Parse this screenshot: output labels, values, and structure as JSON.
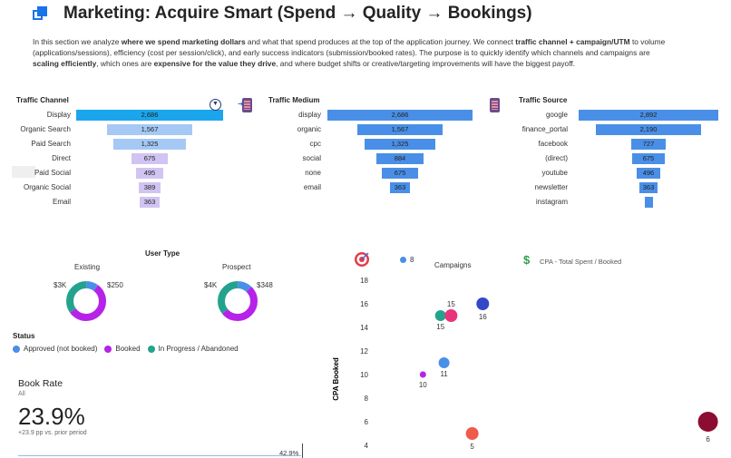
{
  "page": {
    "title": "Marketing: Acquire Smart (Spend → Quality → Bookings)",
    "intro": [
      {
        "t": "In this section we analyze ",
        "b": false
      },
      {
        "t": "where we spend marketing dollars",
        "b": true
      },
      {
        "t": " and what that spend produces at the top of the application journey. We connect ",
        "b": false
      },
      {
        "t": "traffic channel + campaign/UTM",
        "b": true
      },
      {
        "t": " to volume (applications/sessions), efficiency (cost per session/click), and early success indicators (submission/booked rates). The purpose is to quickly identify which channels and campaigns are ",
        "b": false
      },
      {
        "t": "scaling efficiently",
        "b": true
      },
      {
        "t": ", which ones are ",
        "b": false
      },
      {
        "t": "expensive for the value they drive",
        "b": true
      },
      {
        "t": ", and where budget shifts or creative/targeting improvements will have the biggest payoff.",
        "b": false
      }
    ]
  },
  "colors": {
    "channel_highlight": "#1aa5ec",
    "channel_bars": "#a5c8f5",
    "channel_bars_light": "#d1c4f2",
    "medium_bars": "#4a8fe7",
    "source_bars": "#4a8fe7",
    "approved": "#4a8fe7",
    "booked": "#b622e8",
    "in_progress": "#23a38d",
    "scatter_large": "#8c0d32"
  },
  "funnels": {
    "channel": {
      "title": "Traffic Channel",
      "rows": [
        {
          "label": "Display",
          "value": 2686,
          "display": "2,686",
          "color": "#1aa5ec"
        },
        {
          "label": "Organic Search",
          "value": 1567,
          "display": "1,567",
          "color": "#a5c8f5"
        },
        {
          "label": "Paid Search",
          "value": 1325,
          "display": "1,325",
          "color": "#a5c8f5"
        },
        {
          "label": "Direct",
          "value": 675,
          "display": "675",
          "color": "#d1c4f2"
        },
        {
          "label": "Paid Social",
          "value": 495,
          "display": "495",
          "color": "#d1c4f2"
        },
        {
          "label": "Organic Social",
          "value": 389,
          "display": "389",
          "color": "#d1c4f2"
        },
        {
          "label": "Email",
          "value": 363,
          "display": "363",
          "color": "#d1c4f2"
        }
      ]
    },
    "medium": {
      "title": "Traffic Medium",
      "rows": [
        {
          "label": "display",
          "value": 2686,
          "display": "2,686",
          "color": "#4a8fe7"
        },
        {
          "label": "organic",
          "value": 1567,
          "display": "1,567",
          "color": "#4a8fe7"
        },
        {
          "label": "cpc",
          "value": 1325,
          "display": "1,325",
          "color": "#4a8fe7"
        },
        {
          "label": "social",
          "value": 884,
          "display": "884",
          "color": "#4a8fe7"
        },
        {
          "label": "none",
          "value": 675,
          "display": "675",
          "color": "#4a8fe7"
        },
        {
          "label": "email",
          "value": 363,
          "display": "363",
          "color": "#4a8fe7"
        }
      ]
    },
    "source": {
      "title": "Traffic Source",
      "rows": [
        {
          "label": "google",
          "value": 2892,
          "display": "2,892",
          "color": "#4a8fe7"
        },
        {
          "label": "finance_portal",
          "value": 2190,
          "display": "2,190",
          "color": "#4a8fe7"
        },
        {
          "label": "facebook",
          "value": 727,
          "display": "727",
          "color": "#4a8fe7"
        },
        {
          "label": "(direct)",
          "value": 675,
          "display": "675",
          "color": "#4a8fe7"
        },
        {
          "label": "youtube",
          "value": 496,
          "display": "496",
          "color": "#4a8fe7"
        },
        {
          "label": "newsletter",
          "value": 363,
          "display": "363",
          "color": "#4a8fe7"
        },
        {
          "label": "instagram",
          "value": 100,
          "display": "",
          "color": "#4a8fe7"
        }
      ]
    }
  },
  "user_type": {
    "title": "User Type",
    "existing": {
      "label": "Existing",
      "left_value": "$3K",
      "right_value": "$250",
      "shares": [
        0.1,
        0.55,
        0.35
      ]
    },
    "prospect": {
      "label": "Prospect",
      "left_value": "$4K",
      "right_value": "$348",
      "shares": [
        0.12,
        0.52,
        0.36
      ]
    }
  },
  "status": {
    "title": "Status",
    "items": [
      {
        "label": "Approved (not booked)",
        "color": "#4a8fe7"
      },
      {
        "label": "Booked",
        "color": "#b622e8"
      },
      {
        "label": "In Progress / Abandoned",
        "color": "#23a38d"
      }
    ]
  },
  "kpi": {
    "title": "Book Rate",
    "filter": "All",
    "value": "23.9%",
    "delta": "+23.9 pp vs. prior period",
    "last_value": "42.9%"
  },
  "campaigns": {
    "legend_value": "8",
    "title": "Campaigns",
    "cpa_title": "CPA - Total Spent / Booked"
  },
  "chart_data": {
    "type": "scatter",
    "title": "Campaigns",
    "ylabel": "CPA Booked",
    "xlabel": "",
    "ylim": [
      4,
      18
    ],
    "yticks": [
      4,
      6,
      8,
      10,
      12,
      14,
      16,
      18
    ],
    "points": [
      {
        "x": 0.14,
        "y": 10,
        "label": "10",
        "size": 3.5,
        "color": "#b622e8"
      },
      {
        "x": 0.2,
        "y": 11,
        "label": "11",
        "size": 6,
        "color": "#4a8fe7"
      },
      {
        "x": 0.19,
        "y": 15,
        "label": "15",
        "size": 6,
        "color": "#23a38d"
      },
      {
        "x": 0.22,
        "y": 15,
        "label": "15",
        "size": 7,
        "color": "#e8347a"
      },
      {
        "x": 0.31,
        "y": 16,
        "label": "16",
        "size": 7,
        "color": "#3547c9"
      },
      {
        "x": 0.28,
        "y": 5,
        "label": "5",
        "size": 7,
        "color": "#f05a4a"
      },
      {
        "x": 0.95,
        "y": 6,
        "label": "6",
        "size": 11,
        "color": "#8c0d32"
      }
    ]
  }
}
